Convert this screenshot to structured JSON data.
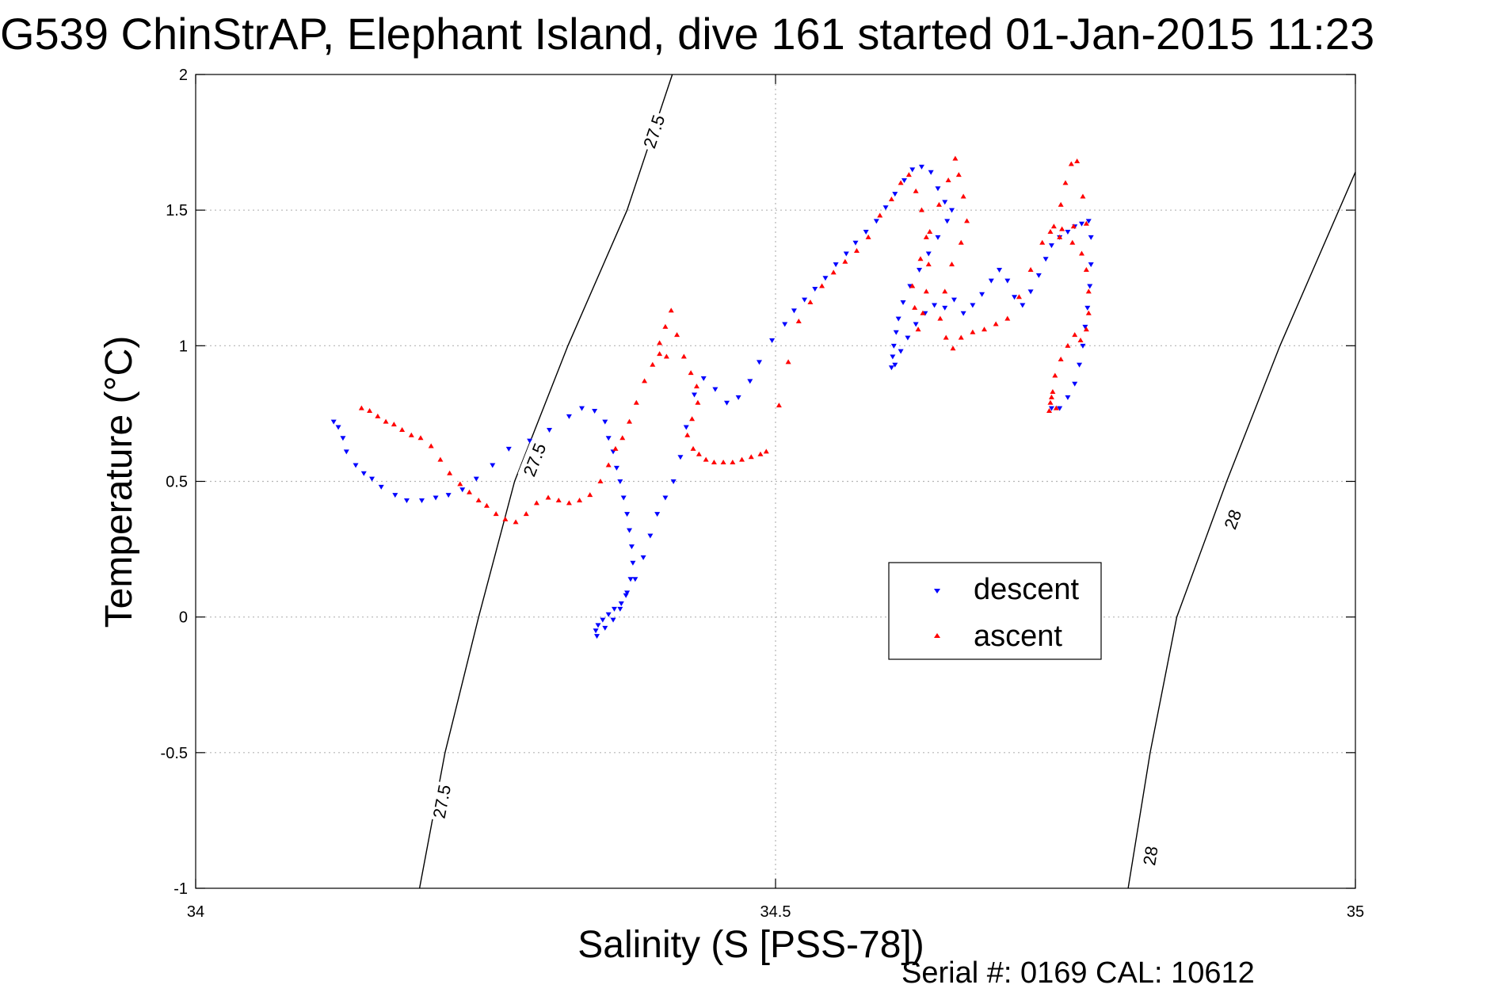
{
  "chart_data": {
    "type": "scatter",
    "title": "G539 ChinStrAP, Elephant Island, dive 161 started 01-Jan-2015 11:23",
    "xlabel": "Salinity (S [PSS-78])",
    "ylabel": "Temperature (°C)",
    "xlim": [
      34,
      35
    ],
    "ylim": [
      -1,
      2
    ],
    "xticks": [
      34,
      34.5,
      35
    ],
    "xtick_labels": [
      "34",
      "34.5",
      "35"
    ],
    "yticks": [
      -1,
      -0.5,
      0,
      0.5,
      1,
      1.5,
      2
    ],
    "ytick_labels": [
      "-1",
      "-0.5",
      "0",
      "0.5",
      "1",
      "1.5",
      "2"
    ],
    "grid": true,
    "legend_position": "center-right",
    "footer": "Serial #: 0169 CAL: 10612",
    "contours": [
      {
        "label": "27.5",
        "points": [
          [
            34.193,
            -1.0
          ],
          [
            34.215,
            -0.5
          ],
          [
            34.244,
            0.0
          ],
          [
            34.275,
            0.5
          ],
          [
            34.321,
            1.0
          ],
          [
            34.372,
            1.5
          ],
          [
            34.411,
            2.0
          ]
        ],
        "label_positions": [
          [
            34.212,
            -0.68
          ],
          [
            34.292,
            0.58
          ],
          [
            34.395,
            1.79
          ]
        ]
      },
      {
        "label": "28",
        "points": [
          [
            34.804,
            -1.0
          ],
          [
            34.823,
            -0.5
          ],
          [
            34.846,
            0.0
          ],
          [
            34.889,
            0.5
          ],
          [
            34.935,
            1.0
          ],
          [
            35.0,
            1.64
          ]
        ],
        "label_positions": [
          [
            34.823,
            -0.88
          ],
          [
            34.894,
            0.36
          ]
        ]
      }
    ],
    "series": [
      {
        "name": "descent",
        "color": "#0000ff",
        "marker": "triangle-down",
        "points": [
          [
            34.119,
            0.72
          ],
          [
            34.123,
            0.7
          ],
          [
            34.127,
            0.66
          ],
          [
            34.13,
            0.61
          ],
          [
            34.138,
            0.56
          ],
          [
            34.145,
            0.53
          ],
          [
            34.152,
            0.51
          ],
          [
            34.16,
            0.48
          ],
          [
            34.172,
            0.45
          ],
          [
            34.182,
            0.43
          ],
          [
            34.195,
            0.43
          ],
          [
            34.207,
            0.44
          ],
          [
            34.218,
            0.45
          ],
          [
            34.23,
            0.47
          ],
          [
            34.242,
            0.51
          ],
          [
            34.256,
            0.56
          ],
          [
            34.27,
            0.62
          ],
          [
            34.288,
            0.65
          ],
          [
            34.305,
            0.69
          ],
          [
            34.322,
            0.74
          ],
          [
            34.333,
            0.77
          ],
          [
            34.344,
            0.76
          ],
          [
            34.353,
            0.72
          ],
          [
            34.356,
            0.66
          ],
          [
            34.36,
            0.61
          ],
          [
            34.363,
            0.55
          ],
          [
            34.366,
            0.5
          ],
          [
            34.369,
            0.44
          ],
          [
            34.372,
            0.38
          ],
          [
            34.374,
            0.32
          ],
          [
            34.376,
            0.26
          ],
          [
            34.377,
            0.2
          ],
          [
            34.375,
            0.14
          ],
          [
            34.372,
            0.09
          ],
          [
            34.367,
            0.05
          ],
          [
            34.361,
            0.03
          ],
          [
            34.356,
            0.01
          ],
          [
            34.351,
            -0.01
          ],
          [
            34.347,
            -0.03
          ],
          [
            34.345,
            -0.05
          ],
          [
            34.346,
            -0.07
          ],
          [
            34.353,
            -0.04
          ],
          [
            34.36,
            -0.01
          ],
          [
            34.366,
            0.03
          ],
          [
            34.371,
            0.08
          ],
          [
            34.379,
            0.14
          ],
          [
            34.386,
            0.22
          ],
          [
            34.392,
            0.3
          ],
          [
            34.398,
            0.38
          ],
          [
            34.405,
            0.44
          ],
          [
            34.412,
            0.5
          ],
          [
            34.418,
            0.59
          ],
          [
            34.423,
            0.7
          ],
          [
            34.43,
            0.82
          ],
          [
            34.438,
            0.88
          ],
          [
            34.448,
            0.84
          ],
          [
            34.458,
            0.79
          ],
          [
            34.468,
            0.81
          ],
          [
            34.478,
            0.87
          ],
          [
            34.486,
            0.94
          ],
          [
            34.497,
            1.02
          ],
          [
            34.508,
            1.08
          ],
          [
            34.516,
            1.13
          ],
          [
            34.525,
            1.17
          ],
          [
            34.534,
            1.21
          ],
          [
            34.543,
            1.25
          ],
          [
            34.552,
            1.3
          ],
          [
            34.561,
            1.34
          ],
          [
            34.569,
            1.38
          ],
          [
            34.578,
            1.42
          ],
          [
            34.587,
            1.46
          ],
          [
            34.595,
            1.51
          ],
          [
            34.603,
            1.56
          ],
          [
            34.611,
            1.61
          ],
          [
            34.618,
            1.65
          ],
          [
            34.626,
            1.66
          ],
          [
            34.634,
            1.64
          ],
          [
            34.64,
            1.58
          ],
          [
            34.646,
            1.53
          ],
          [
            34.652,
            1.5
          ],
          [
            34.648,
            1.46
          ],
          [
            34.64,
            1.4
          ],
          [
            34.632,
            1.34
          ],
          [
            34.624,
            1.28
          ],
          [
            34.616,
            1.22
          ],
          [
            34.61,
            1.16
          ],
          [
            34.606,
            1.1
          ],
          [
            34.604,
            1.05
          ],
          [
            34.602,
            1.0
          ],
          [
            34.601,
            0.96
          ],
          [
            34.6,
            0.92
          ],
          [
            34.603,
            0.93
          ],
          [
            34.608,
            0.98
          ],
          [
            34.614,
            1.03
          ],
          [
            34.621,
            1.08
          ],
          [
            34.629,
            1.12
          ],
          [
            34.637,
            1.15
          ],
          [
            34.646,
            1.14
          ],
          [
            34.654,
            1.17
          ],
          [
            34.662,
            1.12
          ],
          [
            34.67,
            1.15
          ],
          [
            34.678,
            1.19
          ],
          [
            34.686,
            1.24
          ],
          [
            34.693,
            1.28
          ],
          [
            34.7,
            1.24
          ],
          [
            34.706,
            1.18
          ],
          [
            34.713,
            1.15
          ],
          [
            34.72,
            1.2
          ],
          [
            34.727,
            1.26
          ],
          [
            34.733,
            1.32
          ],
          [
            34.738,
            1.37
          ],
          [
            34.745,
            1.4
          ],
          [
            34.752,
            1.42
          ],
          [
            34.758,
            1.44
          ],
          [
            34.764,
            1.45
          ],
          [
            34.77,
            1.46
          ],
          [
            34.772,
            1.4
          ],
          [
            34.772,
            1.3
          ],
          [
            34.771,
            1.22
          ],
          [
            34.769,
            1.14
          ],
          [
            34.767,
            1.07
          ],
          [
            34.765,
            1.0
          ],
          [
            34.762,
            0.93
          ],
          [
            34.758,
            0.86
          ],
          [
            34.752,
            0.81
          ],
          [
            34.745,
            0.77
          ],
          [
            34.738,
            0.77
          ]
        ]
      },
      {
        "name": "ascent",
        "color": "#ff0000",
        "marker": "triangle-up",
        "points": [
          [
            34.143,
            0.77
          ],
          [
            34.15,
            0.76
          ],
          [
            34.157,
            0.74
          ],
          [
            34.164,
            0.72
          ],
          [
            34.171,
            0.71
          ],
          [
            34.178,
            0.69
          ],
          [
            34.186,
            0.67
          ],
          [
            34.194,
            0.66
          ],
          [
            34.203,
            0.63
          ],
          [
            34.211,
            0.58
          ],
          [
            34.219,
            0.53
          ],
          [
            34.228,
            0.49
          ],
          [
            34.236,
            0.46
          ],
          [
            34.244,
            0.43
          ],
          [
            34.251,
            0.41
          ],
          [
            34.259,
            0.38
          ],
          [
            34.267,
            0.36
          ],
          [
            34.276,
            0.35
          ],
          [
            34.285,
            0.38
          ],
          [
            34.294,
            0.42
          ],
          [
            34.304,
            0.44
          ],
          [
            34.313,
            0.43
          ],
          [
            34.322,
            0.42
          ],
          [
            34.331,
            0.43
          ],
          [
            34.34,
            0.45
          ],
          [
            34.349,
            0.5
          ],
          [
            34.356,
            0.56
          ],
          [
            34.362,
            0.62
          ],
          [
            34.368,
            0.66
          ],
          [
            34.374,
            0.72
          ],
          [
            34.38,
            0.79
          ],
          [
            34.387,
            0.87
          ],
          [
            34.394,
            0.93
          ],
          [
            34.4,
            0.97
          ],
          [
            34.406,
            0.96
          ],
          [
            34.4,
            1.01
          ],
          [
            34.405,
            1.07
          ],
          [
            34.41,
            1.13
          ],
          [
            34.415,
            1.04
          ],
          [
            34.421,
            0.96
          ],
          [
            34.427,
            0.9
          ],
          [
            34.432,
            0.85
          ],
          [
            34.433,
            0.79
          ],
          [
            34.428,
            0.73
          ],
          [
            34.424,
            0.67
          ],
          [
            34.429,
            0.62
          ],
          [
            34.434,
            0.6
          ],
          [
            34.44,
            0.58
          ],
          [
            34.447,
            0.57
          ],
          [
            34.455,
            0.57
          ],
          [
            34.463,
            0.57
          ],
          [
            34.471,
            0.58
          ],
          [
            34.479,
            0.59
          ],
          [
            34.487,
            0.6
          ],
          [
            34.492,
            0.61
          ],
          [
            34.503,
            0.78
          ],
          [
            34.511,
            0.94
          ],
          [
            34.52,
            1.09
          ],
          [
            34.53,
            1.16
          ],
          [
            34.54,
            1.22
          ],
          [
            34.55,
            1.27
          ],
          [
            34.56,
            1.31
          ],
          [
            34.57,
            1.35
          ],
          [
            34.58,
            1.4
          ],
          [
            34.59,
            1.48
          ],
          [
            34.6,
            1.54
          ],
          [
            34.608,
            1.6
          ],
          [
            34.615,
            1.63
          ],
          [
            34.621,
            1.57
          ],
          [
            34.626,
            1.5
          ],
          [
            34.63,
            1.4
          ],
          [
            34.632,
            1.3
          ],
          [
            34.63,
            1.2
          ],
          [
            34.627,
            1.12
          ],
          [
            34.623,
            1.06
          ],
          [
            34.62,
            1.14
          ],
          [
            34.618,
            1.22
          ],
          [
            34.625,
            1.32
          ],
          [
            34.633,
            1.42
          ],
          [
            34.641,
            1.52
          ],
          [
            34.649,
            1.61
          ],
          [
            34.655,
            1.69
          ],
          [
            34.658,
            1.63
          ],
          [
            34.662,
            1.55
          ],
          [
            34.665,
            1.46
          ],
          [
            34.66,
            1.38
          ],
          [
            34.652,
            1.3
          ],
          [
            34.646,
            1.2
          ],
          [
            34.642,
            1.1
          ],
          [
            34.647,
            1.03
          ],
          [
            34.653,
            0.99
          ],
          [
            34.66,
            1.03
          ],
          [
            34.67,
            1.05
          ],
          [
            34.68,
            1.06
          ],
          [
            34.69,
            1.08
          ],
          [
            34.7,
            1.1
          ],
          [
            34.71,
            1.18
          ],
          [
            34.72,
            1.28
          ],
          [
            34.73,
            1.38
          ],
          [
            34.74,
            1.44
          ],
          [
            34.746,
            1.52
          ],
          [
            34.75,
            1.6
          ],
          [
            34.755,
            1.67
          ],
          [
            34.76,
            1.68
          ],
          [
            34.765,
            1.55
          ],
          [
            34.768,
            1.45
          ],
          [
            34.757,
            1.44
          ],
          [
            34.747,
            1.43
          ],
          [
            34.737,
            1.42
          ],
          [
            34.745,
            1.4
          ],
          [
            34.756,
            1.38
          ],
          [
            34.764,
            1.34
          ],
          [
            34.768,
            1.28
          ],
          [
            34.77,
            1.2
          ],
          [
            34.77,
            1.12
          ],
          [
            34.768,
            1.06
          ],
          [
            34.763,
            1.02
          ],
          [
            34.758,
            1.04
          ],
          [
            34.752,
            1.0
          ],
          [
            34.746,
            0.95
          ],
          [
            34.741,
            0.89
          ],
          [
            34.739,
            0.83
          ],
          [
            34.737,
            0.79
          ],
          [
            34.736,
            0.76
          ],
          [
            34.738,
            0.81
          ],
          [
            34.742,
            0.77
          ]
        ]
      }
    ]
  },
  "legend": {
    "descent_label": "descent",
    "ascent_label": "ascent"
  }
}
